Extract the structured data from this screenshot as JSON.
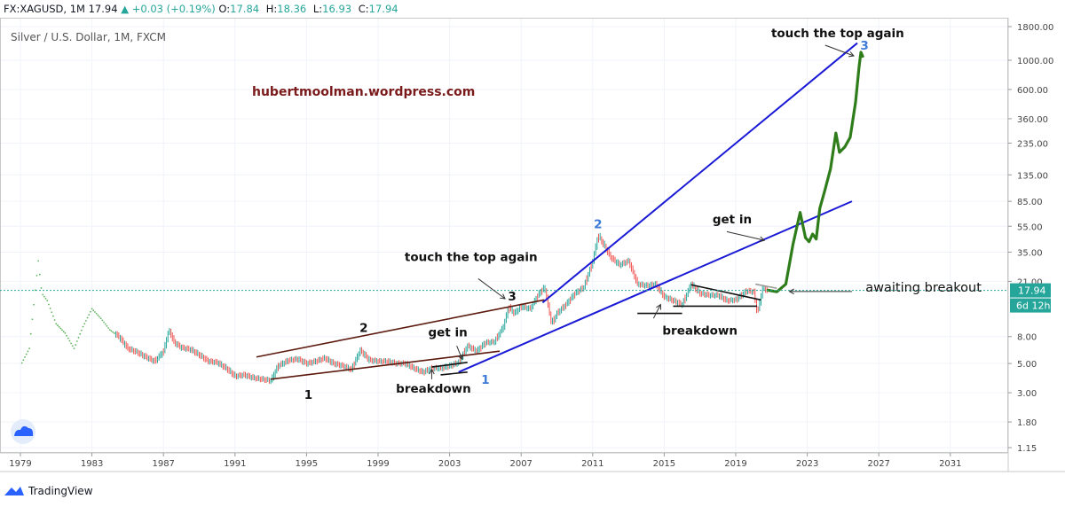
{
  "header": {
    "symbol": "FX:XAGUSD, 1M",
    "last": "17.94",
    "change": "+0.03 (+0.19%)",
    "o_label": "O:",
    "o_val": "17.84",
    "h_label": "H:",
    "h_val": "18.36",
    "l_label": "L:",
    "l_val": "16.93",
    "c_label": "C:",
    "c_val": "17.94"
  },
  "chart_title": "Silver / U.S. Dollar, 1M, FXCM",
  "watermark": "hubertmoolman.wordpress.com",
  "footer_brand": "TradingView",
  "chart_data": {
    "type": "line",
    "y_scale": "log",
    "yticks": [
      1800,
      1000,
      600,
      360,
      235,
      135,
      85,
      55,
      35,
      21,
      8,
      5,
      3,
      1.8,
      1.15
    ],
    "ytick_labels": [
      "1800.00",
      "1000.00",
      "600.00",
      "360.00",
      "235.00",
      "135.00",
      "85.00",
      "55.00",
      "35.00",
      "21.00",
      "8.00",
      "5.00",
      "3.00",
      "1.80",
      "1.15"
    ],
    "xticks": [
      1979,
      1983,
      1987,
      1991,
      1995,
      1999,
      2003,
      2007,
      2011,
      2015,
      2019,
      2023,
      2027,
      2031
    ],
    "current_price": "17.94",
    "countdown": "6d 12h",
    "price_series": [
      [
        1979.0,
        4.8
      ],
      [
        1979.5,
        6.5
      ],
      [
        1980.0,
        30
      ],
      [
        1980.2,
        17
      ],
      [
        1980.5,
        15
      ],
      [
        1981.0,
        10
      ],
      [
        1981.5,
        8.5
      ],
      [
        1982.0,
        6.5
      ],
      [
        1982.5,
        9.5
      ],
      [
        1983.0,
        13
      ],
      [
        1983.5,
        11
      ],
      [
        1984.0,
        9
      ],
      [
        1984.5,
        8
      ],
      [
        1985.0,
        6.5
      ],
      [
        1985.5,
        6.1
      ],
      [
        1986.0,
        5.6
      ],
      [
        1986.5,
        5.2
      ],
      [
        1987.0,
        6.2
      ],
      [
        1987.3,
        9.0
      ],
      [
        1987.6,
        7.2
      ],
      [
        1988.0,
        6.6
      ],
      [
        1988.5,
        6.4
      ],
      [
        1989.0,
        5.8
      ],
      [
        1989.5,
        5.2
      ],
      [
        1990.0,
        5.1
      ],
      [
        1990.5,
        4.6
      ],
      [
        1991.0,
        4.0
      ],
      [
        1991.5,
        4.1
      ],
      [
        1992.0,
        3.9
      ],
      [
        1992.5,
        3.8
      ],
      [
        1993.0,
        3.7
      ],
      [
        1993.4,
        4.8
      ],
      [
        1994.0,
        5.3
      ],
      [
        1994.5,
        5.4
      ],
      [
        1995.0,
        5.0
      ],
      [
        1995.5,
        5.2
      ],
      [
        1996.0,
        5.5
      ],
      [
        1996.5,
        5.0
      ],
      [
        1997.0,
        4.8
      ],
      [
        1997.5,
        4.5
      ],
      [
        1998.0,
        6.3
      ],
      [
        1998.5,
        5.3
      ],
      [
        1999.0,
        5.2
      ],
      [
        1999.5,
        5.2
      ],
      [
        2000.0,
        5.0
      ],
      [
        2000.5,
        5.0
      ],
      [
        2001.0,
        4.6
      ],
      [
        2001.5,
        4.3
      ],
      [
        2002.0,
        4.6
      ],
      [
        2002.5,
        4.6
      ],
      [
        2003.0,
        4.8
      ],
      [
        2003.5,
        5.1
      ],
      [
        2004.0,
        6.8
      ],
      [
        2004.5,
        6.2
      ],
      [
        2005.0,
        7.2
      ],
      [
        2005.5,
        7.3
      ],
      [
        2006.0,
        9.5
      ],
      [
        2006.3,
        13.5
      ],
      [
        2006.6,
        12
      ],
      [
        2007.0,
        13.5
      ],
      [
        2007.5,
        13
      ],
      [
        2008.0,
        17
      ],
      [
        2008.3,
        19
      ],
      [
        2008.7,
        10
      ],
      [
        2009.0,
        12
      ],
      [
        2009.5,
        14
      ],
      [
        2010.0,
        17
      ],
      [
        2010.5,
        19
      ],
      [
        2011.0,
        30
      ],
      [
        2011.3,
        47
      ],
      [
        2011.6,
        40
      ],
      [
        2012.0,
        32
      ],
      [
        2012.5,
        28
      ],
      [
        2013.0,
        30
      ],
      [
        2013.5,
        20
      ],
      [
        2014.0,
        19.5
      ],
      [
        2014.5,
        20
      ],
      [
        2015.0,
        16
      ],
      [
        2015.5,
        15
      ],
      [
        2016.0,
        14
      ],
      [
        2016.5,
        20
      ],
      [
        2017.0,
        17
      ],
      [
        2017.5,
        16.5
      ],
      [
        2018.0,
        16.5
      ],
      [
        2018.5,
        15
      ],
      [
        2019.0,
        15.2
      ],
      [
        2019.6,
        17.8
      ],
      [
        2020.0,
        17.5
      ],
      [
        2020.2,
        12
      ],
      [
        2020.5,
        18.5
      ],
      [
        2020.8,
        17.94
      ]
    ],
    "projection": [
      [
        2020.8,
        18
      ],
      [
        2021.3,
        17.5
      ],
      [
        2021.8,
        20
      ],
      [
        2022.2,
        40
      ],
      [
        2022.6,
        70
      ],
      [
        2022.9,
        45
      ],
      [
        2023.1,
        42
      ],
      [
        2023.3,
        48
      ],
      [
        2023.5,
        44
      ],
      [
        2023.7,
        75
      ],
      [
        2024.0,
        105
      ],
      [
        2024.3,
        150
      ],
      [
        2024.6,
        280
      ],
      [
        2024.8,
        200
      ],
      [
        2025.1,
        220
      ],
      [
        2025.4,
        260
      ],
      [
        2025.7,
        480
      ],
      [
        2025.9,
        900
      ],
      [
        2026.0,
        1150
      ],
      [
        2026.1,
        1070
      ]
    ],
    "trendlines": [
      {
        "color": "#5d1a0f",
        "from": [
          1992.2,
          5.6
        ],
        "to": [
          2008.3,
          15.2
        ]
      },
      {
        "color": "#5d1a0f",
        "from": [
          1993.0,
          3.8
        ],
        "to": [
          2005.8,
          6.2
        ]
      },
      {
        "color": "#1a1ad6",
        "from": [
          2003.5,
          4.3
        ],
        "to": [
          2025.5,
          85
        ]
      },
      {
        "color": "#1a1ad6",
        "from": [
          2008.2,
          14.5
        ],
        "to": [
          2025.8,
          1350
        ]
      },
      {
        "color": "#111111",
        "from": [
          2002.5,
          4.1
        ],
        "to": [
          2004.0,
          4.3
        ]
      },
      {
        "color": "#111111",
        "from": [
          2002.0,
          4.7
        ],
        "to": [
          2004.0,
          5.1
        ]
      },
      {
        "color": "#111111",
        "from": [
          2013.5,
          12
        ],
        "to": [
          2016.0,
          12
        ]
      },
      {
        "color": "#111111",
        "from": [
          2015.5,
          13.6
        ],
        "to": [
          2020.2,
          13.6
        ]
      },
      {
        "color": "#111111",
        "from": [
          2016.5,
          19.8
        ],
        "to": [
          2020.4,
          15.2
        ]
      },
      {
        "color": "#999999",
        "from": [
          2020.1,
          20
        ],
        "to": [
          2021.3,
          18.6
        ]
      }
    ],
    "annotations": [
      {
        "text": "touch the top again",
        "x": 2024.7,
        "y": 1500,
        "color": "#111111",
        "bold": true
      },
      {
        "text": "3",
        "x": 2026.2,
        "y": 1200,
        "color": "#3d7bd8",
        "bold": true
      },
      {
        "text": "2",
        "x": 2011.3,
        "y": 53,
        "color": "#3d7bd8",
        "bold": true
      },
      {
        "text": "get in",
        "x": 2018.8,
        "y": 58,
        "color": "#111111",
        "bold": true
      },
      {
        "text": "touch the top again",
        "x": 2004.2,
        "y": 30,
        "color": "#111111",
        "bold": true
      },
      {
        "text": "3",
        "x": 2006.5,
        "y": 15,
        "color": "#111111",
        "bold": true
      },
      {
        "text": "2",
        "x": 1998.2,
        "y": 8.7,
        "color": "#111111",
        "bold": true
      },
      {
        "text": "get in",
        "x": 2002.9,
        "y": 8.0,
        "color": "#111111",
        "bold": true
      },
      {
        "text": "breakdown",
        "x": 2017.0,
        "y": 8.3,
        "color": "#111111",
        "bold": true
      },
      {
        "text": "breakdown",
        "x": 2002.1,
        "y": 3.0,
        "color": "#111111",
        "bold": true
      },
      {
        "text": "1",
        "x": 2005.0,
        "y": 3.5,
        "color": "#3d7bd8",
        "bold": true
      },
      {
        "text": "1",
        "x": 1995.1,
        "y": 2.7,
        "color": "#111111",
        "bold": true
      },
      {
        "text": "awaiting breakout",
        "x": 2029.5,
        "y": 17.5,
        "color": "#111111",
        "bold": false
      }
    ]
  }
}
